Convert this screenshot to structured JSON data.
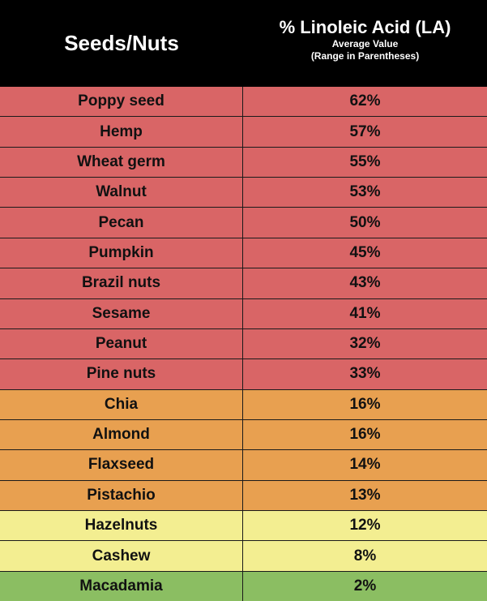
{
  "header": {
    "left_title": "Seeds/Nuts",
    "right_title": "% Linoleic Acid (LA)",
    "right_sub1": "Average Value",
    "right_sub2": "(Range in Parentheses)"
  },
  "colors": {
    "red": "#d96566",
    "orange": "#e8a050",
    "yellow": "#f3ee91",
    "green": "#8bbe62"
  },
  "rows": [
    {
      "name": "Poppy seed",
      "value": "62%",
      "tier": "red"
    },
    {
      "name": "Hemp",
      "value": "57%",
      "tier": "red"
    },
    {
      "name": "Wheat germ",
      "value": "55%",
      "tier": "red"
    },
    {
      "name": "Walnut",
      "value": "53%",
      "tier": "red"
    },
    {
      "name": "Pecan",
      "value": "50%",
      "tier": "red"
    },
    {
      "name": "Pumpkin",
      "value": "45%",
      "tier": "red"
    },
    {
      "name": "Brazil nuts",
      "value": "43%",
      "tier": "red"
    },
    {
      "name": "Sesame",
      "value": "41%",
      "tier": "red"
    },
    {
      "name": "Peanut",
      "value": "32%",
      "tier": "red"
    },
    {
      "name": "Pine nuts",
      "value": "33%",
      "tier": "red"
    },
    {
      "name": "Chia",
      "value": "16%",
      "tier": "orange"
    },
    {
      "name": "Almond",
      "value": "16%",
      "tier": "orange"
    },
    {
      "name": "Flaxseed",
      "value": "14%",
      "tier": "orange"
    },
    {
      "name": "Pistachio",
      "value": "13%",
      "tier": "orange"
    },
    {
      "name": "Hazelnuts",
      "value": "12%",
      "tier": "yellow"
    },
    {
      "name": "Cashew",
      "value": "8%",
      "tier": "yellow"
    },
    {
      "name": "Macadamia",
      "value": "2%",
      "tier": "green"
    }
  ]
}
